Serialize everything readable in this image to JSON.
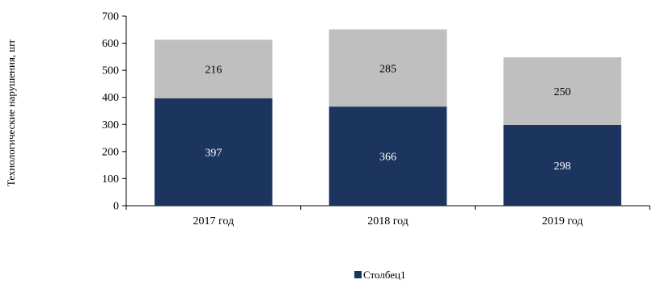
{
  "chart_data": {
    "type": "bar",
    "stacked": true,
    "categories": [
      "2017 год",
      "2018 год",
      "2019 год"
    ],
    "series": [
      {
        "values": [
          397,
          366,
          298
        ],
        "color": "#1c355e"
      },
      {
        "values": [
          216,
          285,
          250
        ],
        "color": "#bfbfbf"
      }
    ],
    "title": "",
    "xlabel": "",
    "ylabel": "Технологические нарушения, шт",
    "ylim": [
      0,
      700
    ],
    "yticks": [
      0,
      100,
      200,
      300,
      400,
      500,
      600,
      700
    ],
    "grid": false,
    "legend": {
      "position": "bottom",
      "entries": [
        {
          "label": "Столбец1",
          "color": "#1c355e"
        }
      ]
    }
  }
}
